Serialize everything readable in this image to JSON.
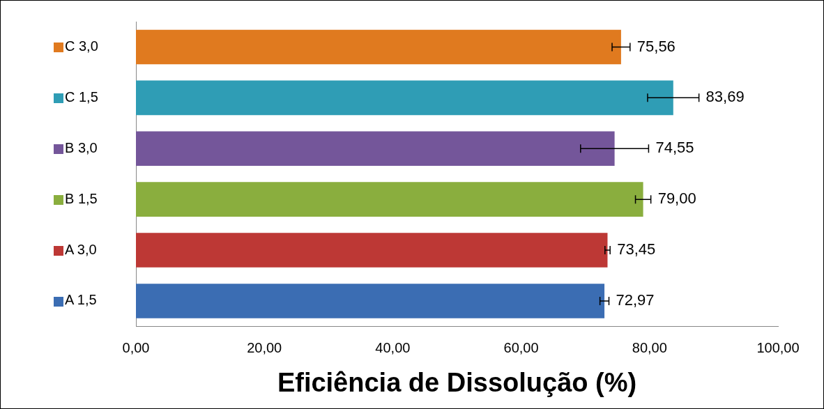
{
  "chart_data": {
    "type": "bar",
    "orientation": "horizontal",
    "xlabel": "Eficiência de Dissolução (%)",
    "categories": [
      "C 3,0",
      "C 1,5",
      "B 3,0",
      "B 1,5",
      "A 3,0",
      "A 1,5"
    ],
    "values": [
      75.56,
      83.69,
      74.55,
      79.0,
      73.45,
      72.97
    ],
    "colors": [
      "#e07a1f",
      "#2f9db5",
      "#74569a",
      "#8aae3e",
      "#bd3835",
      "#3b6db3"
    ],
    "errors": [
      1.4,
      4.0,
      5.3,
      1.2,
      0.4,
      0.7
    ],
    "value_labels": [
      "75,56",
      "83,69",
      "74,55",
      "79,00",
      "73,45",
      "72,97"
    ],
    "xlim": [
      0,
      100
    ],
    "xticks": [
      {
        "value": 0,
        "label": "0,00"
      },
      {
        "value": 20,
        "label": "20,00"
      },
      {
        "value": 40,
        "label": "40,00"
      },
      {
        "value": 60,
        "label": "60,00"
      },
      {
        "value": 80,
        "label": "80,00"
      },
      {
        "value": 100,
        "label": "100,00"
      }
    ],
    "grid": false
  }
}
